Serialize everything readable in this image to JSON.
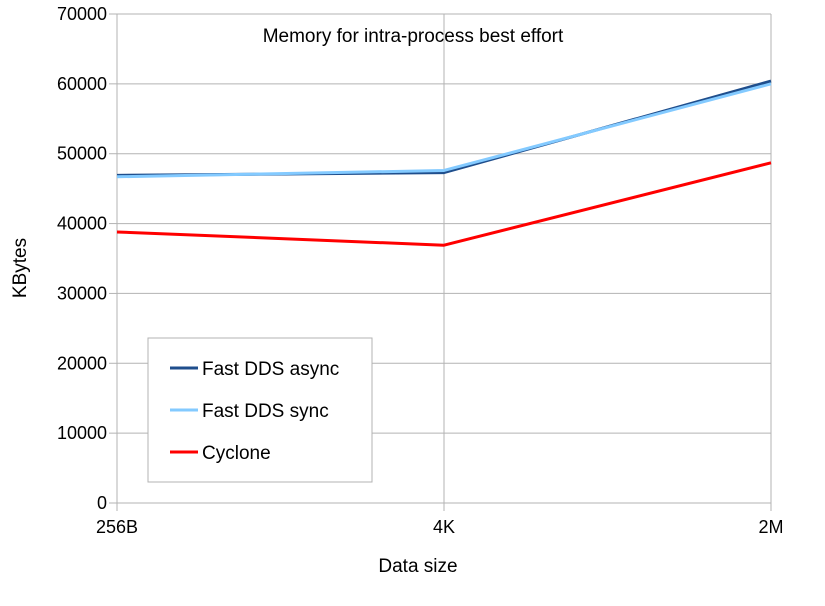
{
  "chart_data": {
    "type": "line",
    "title": "Memory for intra-process best effort",
    "xlabel": "Data size",
    "ylabel": "KBytes",
    "categories": [
      "256B",
      "4K",
      "2M"
    ],
    "ylim": [
      0,
      70000
    ],
    "yticks": [
      0,
      10000,
      20000,
      30000,
      40000,
      50000,
      60000,
      70000
    ],
    "grid": true,
    "legend_position": "lower-left",
    "series": [
      {
        "name": "Fast DDS async",
        "values": [
          46900,
          47300,
          60400
        ],
        "color": "#1f4e8c"
      },
      {
        "name": "Fast DDS sync",
        "values": [
          46700,
          47600,
          60000
        ],
        "color": "#83caff"
      },
      {
        "name": "Cyclone",
        "values": [
          38800,
          36900,
          48700
        ],
        "color": "#ff0000"
      }
    ]
  }
}
